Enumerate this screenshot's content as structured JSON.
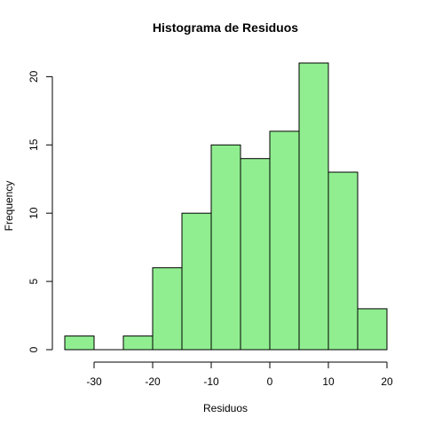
{
  "chart_data": {
    "type": "bar",
    "title": "Histograma de Residuos",
    "xlabel": "Residuos",
    "ylabel": "Frequency",
    "bins": [
      {
        "from": -35,
        "to": -30,
        "count": 1
      },
      {
        "from": -30,
        "to": -25,
        "count": 0
      },
      {
        "from": -25,
        "to": -20,
        "count": 1
      },
      {
        "from": -20,
        "to": -15,
        "count": 6
      },
      {
        "from": -15,
        "to": -10,
        "count": 10
      },
      {
        "from": -10,
        "to": -5,
        "count": 15
      },
      {
        "from": -5,
        "to": 0,
        "count": 14
      },
      {
        "from": 0,
        "to": 5,
        "count": 16
      },
      {
        "from": 5,
        "to": 10,
        "count": 21
      },
      {
        "from": 10,
        "to": 15,
        "count": 13
      },
      {
        "from": 15,
        "to": 20,
        "count": 3
      }
    ],
    "xlim": [
      -35,
      20
    ],
    "ylim": [
      0,
      21
    ],
    "xticks": [
      -30,
      -20,
      -10,
      0,
      10,
      20
    ],
    "yticks": [
      0,
      5,
      10,
      15,
      20
    ],
    "x_axis_range": [
      -30,
      20
    ],
    "y_axis_range": [
      0,
      20
    ],
    "bar_color": "#90EE90",
    "grid": false
  }
}
